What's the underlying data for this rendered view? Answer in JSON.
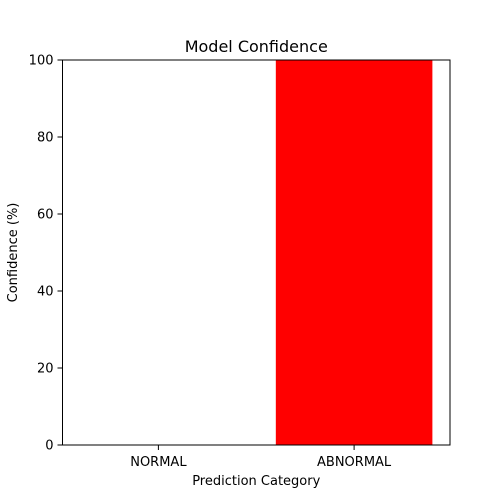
{
  "chart_data": {
    "type": "bar",
    "title": "Model Confidence",
    "xlabel": "Prediction Category",
    "ylabel": "Confidence (%)",
    "categories": [
      "NORMAL",
      "ABNORMAL"
    ],
    "values": [
      0,
      100
    ],
    "bar_colors": [
      "#ff0000",
      "#ff0000"
    ],
    "ylim": [
      0,
      100
    ],
    "yticks": [
      0,
      20,
      40,
      60,
      80,
      100
    ],
    "grid": false,
    "legend": "none"
  }
}
